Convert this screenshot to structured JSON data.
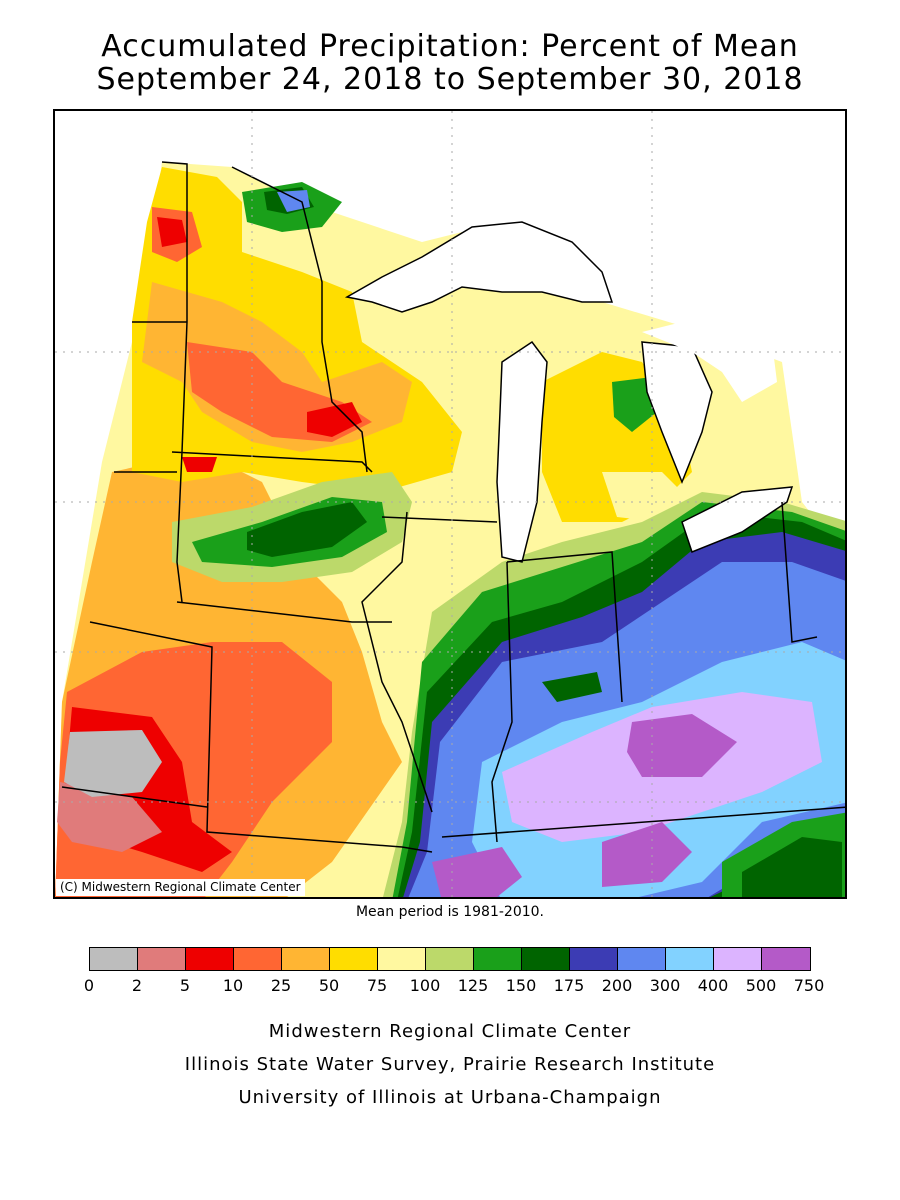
{
  "title": {
    "line1": "Accumulated Precipitation: Percent of Mean",
    "line2": "September 24, 2018 to September 30, 2018"
  },
  "map": {
    "credit": "(C) Midwestern Regional Climate Center",
    "mean_period": "Mean period is 1981-2010."
  },
  "legend": {
    "ticks": [
      "0",
      "2",
      "5",
      "10",
      "25",
      "50",
      "75",
      "100",
      "125",
      "150",
      "175",
      "200",
      "300",
      "400",
      "500",
      "750"
    ],
    "colors": [
      "#bdbdbd",
      "#e07b7b",
      "#ee0000",
      "#ff6633",
      "#ffb533",
      "#ffdd00",
      "#fff8a0",
      "#bcd96a",
      "#1aa01a",
      "#006400",
      "#3c3cb4",
      "#5f87f0",
      "#82d2ff",
      "#dcb4ff",
      "#b45ac8"
    ]
  },
  "footer": {
    "line1": "Midwestern Regional Climate Center",
    "line2": "Illinois State Water Survey, Prairie Research Institute",
    "line3": "University of Illinois at Urbana-Champaign"
  }
}
